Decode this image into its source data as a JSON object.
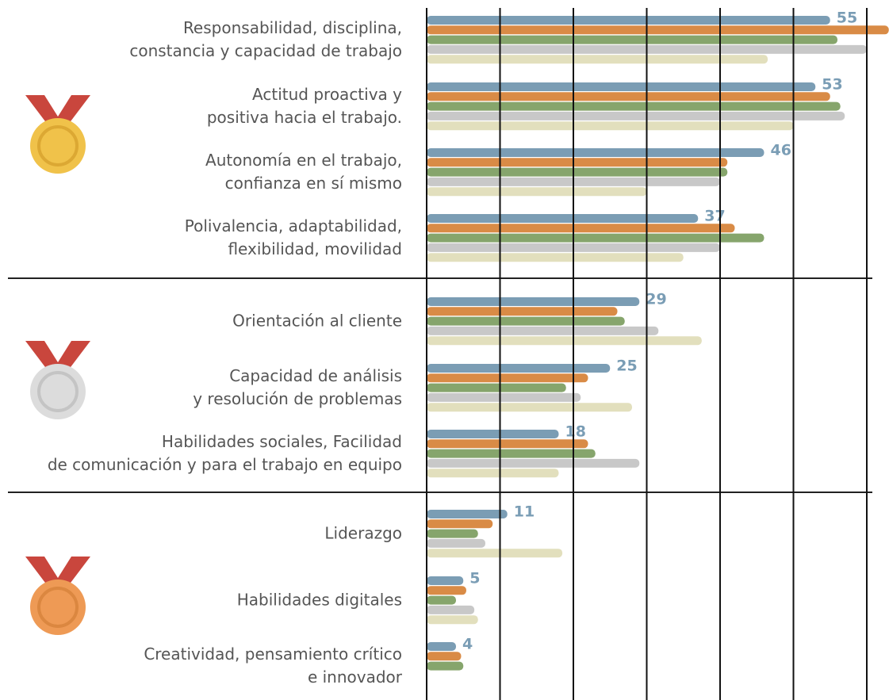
{
  "chart_data": {
    "type": "bar",
    "orientation": "horizontal",
    "categories": [
      "Responsabilidad, disciplina,\nconstancia y capacidad de trabajo",
      "Actitud proactiva y\npositiva hacia el trabajo.",
      "Autonomía en el trabajo,\nconfianza en sí mismo",
      "Polivalencia, adaptabilidad,\nflexibilidad, movilidad",
      "Orientación al cliente",
      "Capacidad de análisis\ny resolución de problemas",
      "Habilidades sociales, Facilidad\nde comunicación y para el trabajo en equipo",
      "Liderazgo",
      "Habilidades digitales",
      "Creatividad, pensamiento crítico\ne innovador"
    ],
    "series": [
      {
        "color": "#7b9db4",
        "values": [
          55,
          53,
          46,
          37,
          29,
          25,
          18,
          11,
          5,
          4
        ]
      },
      {
        "color": "#d98b46",
        "values": [
          63,
          55,
          41,
          42,
          26,
          22,
          22,
          9,
          5.4,
          4.7
        ]
      },
      {
        "color": "#86a56c",
        "values": [
          56,
          56.4,
          41,
          46,
          27,
          19,
          23,
          7,
          4,
          5
        ]
      },
      {
        "color": "#c8c8c8",
        "values": [
          60,
          57,
          40,
          40,
          31.6,
          21,
          29,
          8,
          6.5,
          null
        ]
      },
      {
        "color": "#e2dfbd",
        "values": [
          46.5,
          50,
          30,
          35,
          37.5,
          28,
          18,
          18.5,
          7,
          null
        ]
      }
    ],
    "data_labels_series": 0,
    "xlim": [
      0,
      63
    ],
    "xticks": [
      0,
      10,
      20,
      30,
      40,
      50,
      60
    ],
    "grid": true
  }
}
